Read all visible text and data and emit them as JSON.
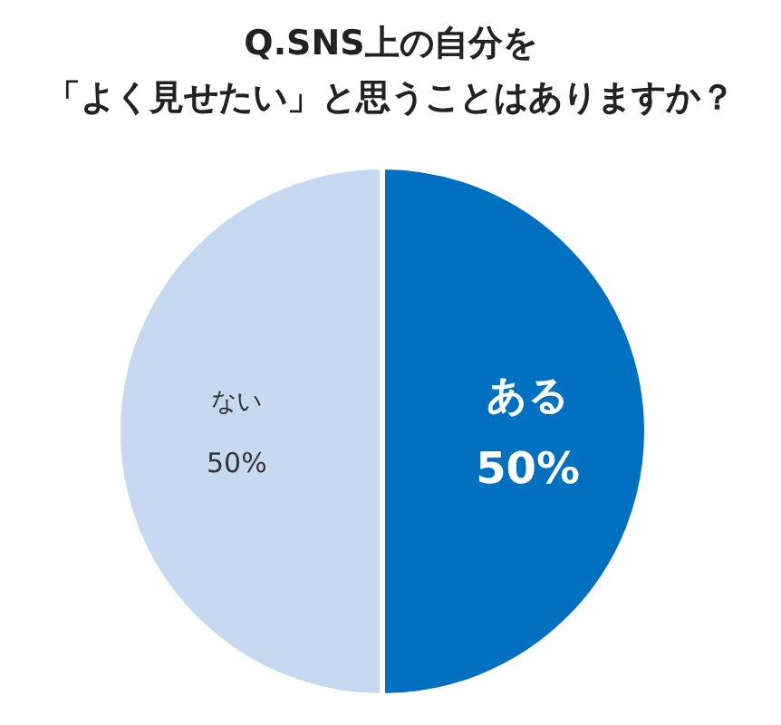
{
  "chart_data": {
    "type": "pie",
    "title": "Q.SNS上の自分を",
    "subtitle": "「よく見せたい」と思うことはありますか？",
    "categories": [
      "ある",
      "ない"
    ],
    "values": [
      50,
      50
    ],
    "colors": [
      "#0070c0",
      "#c6d9f0"
    ],
    "value_labels": [
      "50%",
      "50%"
    ]
  }
}
